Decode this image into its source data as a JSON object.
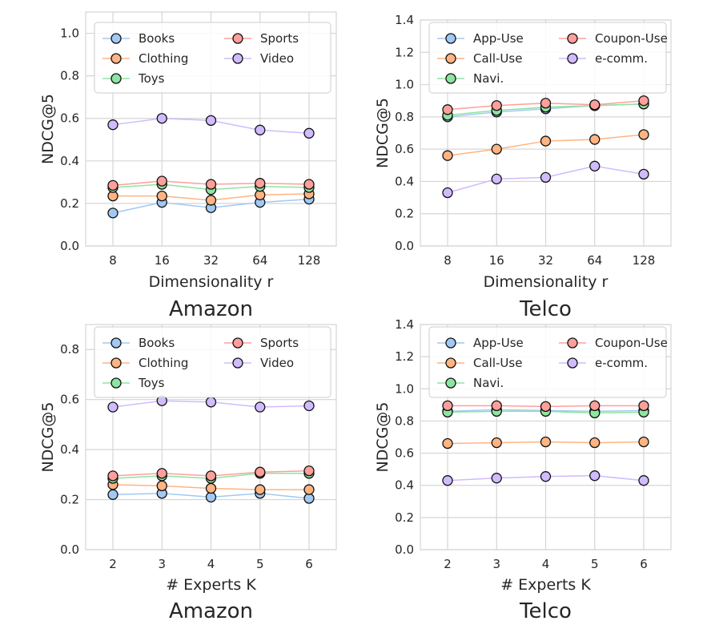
{
  "figure": {
    "colors": {
      "Books": "#a1c9f4",
      "Clothing": "#ffb482",
      "Toys": "#8de5a1",
      "Sports": "#ff9f9b",
      "Video": "#d0bbff",
      "App-Use": "#a1c9f4",
      "Call-Use": "#ffb482",
      "Navi.": "#8de5a1",
      "Coupon-Use": "#ff9f9b",
      "e-comm.": "#d0bbff",
      "grid": "#d5d5d5",
      "marker_edge": "#111111"
    }
  },
  "chart_data": [
    {
      "type": "line",
      "title": "Amazon",
      "xlabel": "Dimensionality r",
      "ylabel": "NDCG@5",
      "categories": [
        "8",
        "16",
        "32",
        "64",
        "128"
      ],
      "ylim": [
        0,
        1.1
      ],
      "yticks": [
        "0.0",
        "0.2",
        "0.4",
        "0.6",
        "0.8",
        "1.0"
      ],
      "legend_order": [
        "Books",
        "Sports",
        "Clothing",
        "Video",
        "Toys"
      ],
      "series": [
        {
          "name": "Books",
          "values": [
            0.155,
            0.205,
            0.18,
            0.205,
            0.22
          ]
        },
        {
          "name": "Clothing",
          "values": [
            0.235,
            0.235,
            0.215,
            0.24,
            0.245
          ]
        },
        {
          "name": "Toys",
          "values": [
            0.275,
            0.29,
            0.265,
            0.28,
            0.275
          ]
        },
        {
          "name": "Sports",
          "values": [
            0.285,
            0.305,
            0.29,
            0.295,
            0.29
          ]
        },
        {
          "name": "Video",
          "values": [
            0.57,
            0.6,
            0.59,
            0.545,
            0.53
          ]
        }
      ]
    },
    {
      "type": "line",
      "title": "Telco",
      "xlabel": "Dimensionality r",
      "ylabel": "NDCG@5",
      "categories": [
        "8",
        "16",
        "32",
        "64",
        "128"
      ],
      "ylim": [
        0,
        1.4
      ],
      "yticks": [
        "0.0",
        "0.2",
        "0.4",
        "0.6",
        "0.8",
        "1.0",
        "1.2",
        "1.4"
      ],
      "legend_order": [
        "App-Use",
        "Coupon-Use",
        "Call-Use",
        "e-comm.",
        "Navi."
      ],
      "series": [
        {
          "name": "App-Use",
          "values": [
            0.8,
            0.83,
            0.85,
            0.87,
            0.88
          ]
        },
        {
          "name": "Call-Use",
          "values": [
            0.56,
            0.6,
            0.65,
            0.66,
            0.69
          ]
        },
        {
          "name": "Navi.",
          "values": [
            0.81,
            0.84,
            0.86,
            0.87,
            0.88
          ]
        },
        {
          "name": "Coupon-Use",
          "values": [
            0.845,
            0.87,
            0.885,
            0.875,
            0.9
          ]
        },
        {
          "name": "e-comm.",
          "values": [
            0.33,
            0.415,
            0.425,
            0.495,
            0.445
          ]
        }
      ]
    },
    {
      "type": "line",
      "title": "Amazon",
      "xlabel": "# Experts K",
      "ylabel": "NDCG@5",
      "categories": [
        "2",
        "3",
        "4",
        "5",
        "6"
      ],
      "ylim": [
        0,
        0.9
      ],
      "yticks": [
        "0.0",
        "0.2",
        "0.4",
        "0.6",
        "0.8"
      ],
      "legend_order": [
        "Books",
        "Sports",
        "Clothing",
        "Video",
        "Toys"
      ],
      "series": [
        {
          "name": "Books",
          "values": [
            0.22,
            0.225,
            0.21,
            0.225,
            0.205
          ]
        },
        {
          "name": "Clothing",
          "values": [
            0.26,
            0.255,
            0.245,
            0.24,
            0.24
          ]
        },
        {
          "name": "Toys",
          "values": [
            0.285,
            0.295,
            0.285,
            0.305,
            0.305
          ]
        },
        {
          "name": "Sports",
          "values": [
            0.295,
            0.305,
            0.295,
            0.31,
            0.315
          ]
        },
        {
          "name": "Video",
          "values": [
            0.57,
            0.595,
            0.59,
            0.57,
            0.575
          ]
        }
      ]
    },
    {
      "type": "line",
      "title": "Telco",
      "xlabel": "# Experts K",
      "ylabel": "NDCG@5",
      "categories": [
        "2",
        "3",
        "4",
        "5",
        "6"
      ],
      "ylim": [
        0,
        1.4
      ],
      "yticks": [
        "0.0",
        "0.2",
        "0.4",
        "0.6",
        "0.8",
        "1.0",
        "1.2",
        "1.4"
      ],
      "legend_order": [
        "App-Use",
        "Coupon-Use",
        "Call-Use",
        "e-comm.",
        "Navi."
      ],
      "series": [
        {
          "name": "App-Use",
          "values": [
            0.86,
            0.87,
            0.865,
            0.86,
            0.865
          ]
        },
        {
          "name": "Call-Use",
          "values": [
            0.66,
            0.665,
            0.67,
            0.665,
            0.67
          ]
        },
        {
          "name": "Navi.",
          "values": [
            0.855,
            0.86,
            0.86,
            0.85,
            0.855
          ]
        },
        {
          "name": "Coupon-Use",
          "values": [
            0.895,
            0.895,
            0.89,
            0.895,
            0.895
          ]
        },
        {
          "name": "e-comm.",
          "values": [
            0.43,
            0.445,
            0.455,
            0.46,
            0.43
          ]
        }
      ]
    }
  ]
}
